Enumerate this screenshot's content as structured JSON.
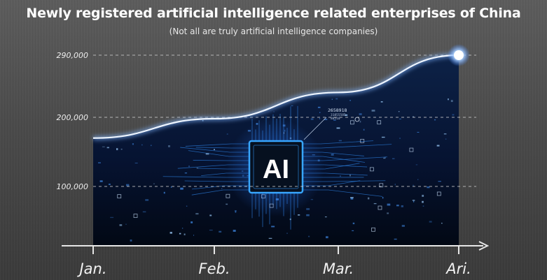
{
  "title": "Newly registered artificial intelligence related enterprises of China",
  "subtitle": "(Not all are truly artificial intelligence companies)",
  "chip_label": "AI",
  "chip_readout": [
    "2658918",
    "31855585",
    "88510"
  ],
  "chart_data": {
    "type": "area",
    "title": "Newly registered artificial intelligence related enterprises of China",
    "subtitle": "(Not all are truly artificial intelligence companies)",
    "categories": [
      "Jan.",
      "Feb.",
      "Mar.",
      "Ari."
    ],
    "values": [
      170000,
      198000,
      236000,
      290000
    ],
    "y_ticks": [
      {
        "value": 100000,
        "label": "100,000"
      },
      {
        "value": 200000,
        "label": "200,000"
      },
      {
        "value": 290000,
        "label": "290,000"
      }
    ],
    "ylim": [
      0,
      290000
    ],
    "grid": true,
    "colors": {
      "fill_top": "#0b1d3a",
      "fill_bottom": "#02060f",
      "line": "#dfe9ff",
      "glow": "#6fa8ff",
      "accent": "#3fa0ff"
    }
  }
}
